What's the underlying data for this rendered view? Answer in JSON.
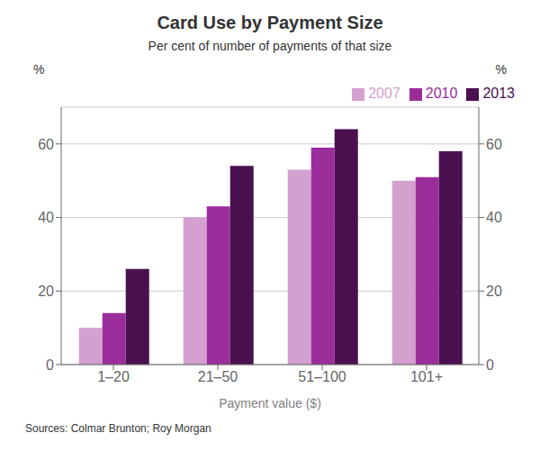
{
  "chart_data": {
    "type": "bar",
    "title": "Card Use by Payment Size",
    "subtitle": "Per cent of number of payments of that size",
    "xlabel": "Payment value ($)",
    "ylabel": "%",
    "y2label": "%",
    "source": "Sources: Colmar Brunton; Roy Morgan",
    "categories": [
      "1–20",
      "21–50",
      "51–100",
      "101+"
    ],
    "series": [
      {
        "name": "2007",
        "color": "#D4A0D0",
        "values": [
          10,
          40,
          53,
          50
        ]
      },
      {
        "name": "2010",
        "color": "#9B2D9B",
        "values": [
          14,
          43,
          59,
          51
        ]
      },
      {
        "name": "2013",
        "color": "#4A1050",
        "values": [
          26,
          54,
          64,
          58
        ]
      }
    ],
    "ylim": [
      0,
      70
    ],
    "yticks": [
      0,
      20,
      40,
      60
    ],
    "y2lim": [
      0,
      70
    ],
    "y2ticks": [
      0,
      20,
      40,
      60
    ],
    "grid": true,
    "legend": "upper right"
  }
}
